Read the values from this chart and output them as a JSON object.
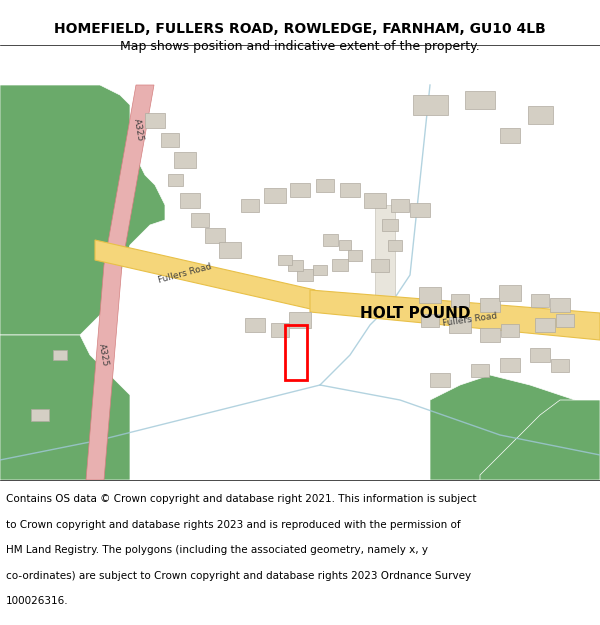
{
  "title_line1": "HOMEFIELD, FULLERS ROAD, ROWLEDGE, FARNHAM, GU10 4LB",
  "title_line2": "Map shows position and indicative extent of the property.",
  "footer": "Contains OS data © Crown copyright and database right 2021. This information is subject to Crown copyright and database rights 2023 and is reproduced with the permission of HM Land Registry. The polygons (including the associated geometry, namely x, y co-ordinates) are subject to Crown copyright and database rights 2023 Ordnance Survey 100026316.",
  "bg_color": "#f5f4f0",
  "map_bg": "#f0efe9",
  "road_color_yellow": "#f5d67a",
  "road_border_yellow": "#e8c048",
  "road_color_pink": "#e8b0b0",
  "road_border_pink": "#d48080",
  "green_color": "#6aaa6a",
  "building_color": "#d4cfc4",
  "building_border": "#b0aba0",
  "water_color": "#c8e0e8",
  "plot_color": "#ff0000",
  "label_holt_pound": "HOLT POUND",
  "label_fullers_road1": "Fullers Road",
  "label_fullers_road2": "Fullers Road",
  "label_a325_1": "A325",
  "label_a325_2": "A325",
  "white_bg": "#ffffff",
  "text_color": "#000000",
  "title_fontsize": 10,
  "footer_fontsize": 7.5
}
